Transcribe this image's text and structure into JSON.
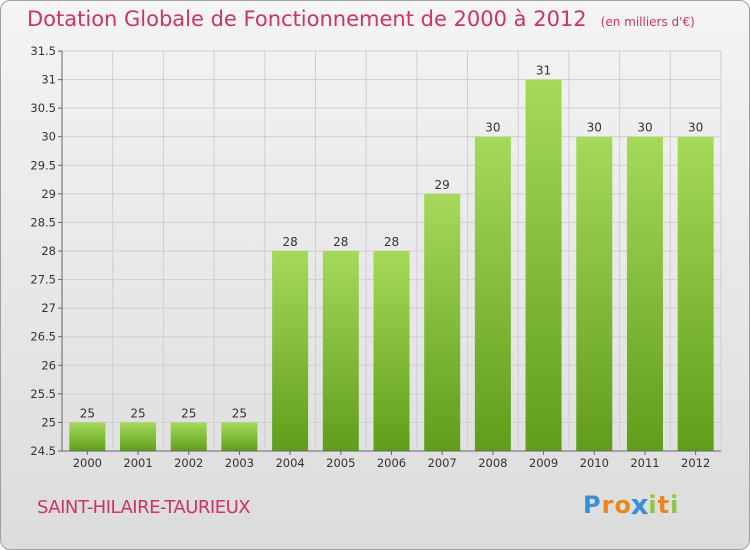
{
  "title": "Dotation Globale de Fonctionnement de 2000 à 2012",
  "unit_note": "(en milliers d'€)",
  "city": "SAINT-HILAIRE-TAURIEUX",
  "logo": {
    "text": "Proxiti",
    "letters": [
      "P",
      "r",
      "o",
      "x",
      "i",
      "t",
      "i"
    ],
    "colors": [
      "#3b8fd8",
      "#e8881c",
      "#e8881c",
      "#3b8fd8",
      "#8dc63f",
      "#e8881c",
      "#8dc63f"
    ]
  },
  "colors": {
    "bar": "#7cbb2a",
    "bar_light": "#a6d95a",
    "title": "#cc3366",
    "grid": "#cfcfcf"
  },
  "chart_data": {
    "type": "bar",
    "title": "Dotation Globale de Fonctionnement de 2000 à 2012",
    "xlabel": "",
    "ylabel": "",
    "categories": [
      "2000",
      "2001",
      "2002",
      "2003",
      "2004",
      "2005",
      "2006",
      "2007",
      "2008",
      "2009",
      "2010",
      "2011",
      "2012"
    ],
    "values": [
      25,
      25,
      25,
      25,
      28,
      28,
      28,
      29,
      30,
      31,
      30,
      30,
      30
    ],
    "value_labels": [
      "25",
      "25",
      "25",
      "25",
      "28",
      "28",
      "28",
      "29",
      "30",
      "31",
      "30",
      "30",
      "30"
    ],
    "ylim": [
      24.5,
      31.5
    ],
    "yticks": [
      "24.5",
      "25",
      "25.5",
      "26",
      "26.5",
      "27",
      "27.5",
      "28",
      "28.5",
      "29",
      "29.5",
      "30",
      "30.5",
      "31",
      "31.5"
    ],
    "grid": true
  }
}
